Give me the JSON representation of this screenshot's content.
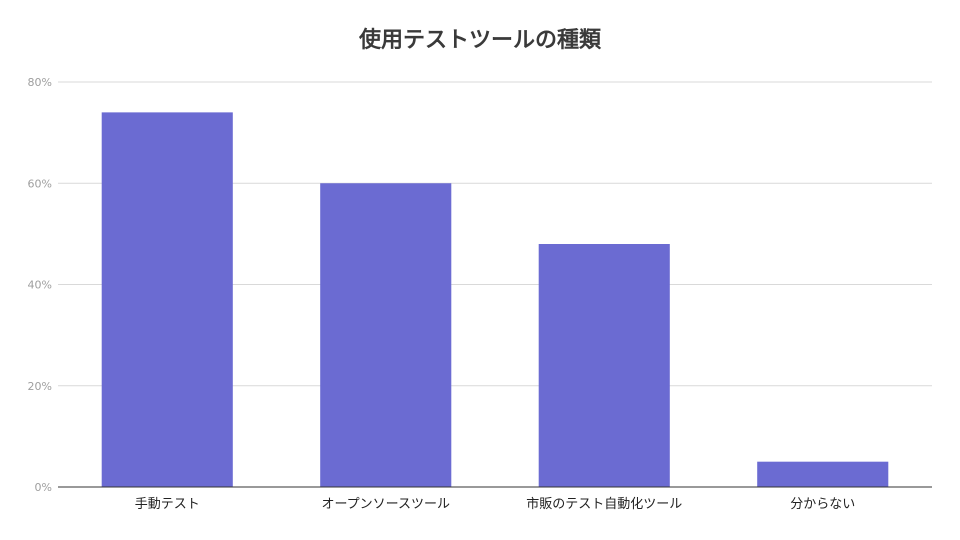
{
  "chart_data": {
    "type": "bar",
    "title": "使用テストツールの種類",
    "xlabel": "",
    "ylabel": "",
    "categories": [
      "手動テスト",
      "オープンソースツール",
      "市販のテスト自動化ツール",
      "分からない"
    ],
    "values": [
      74,
      60,
      48,
      5
    ],
    "value_unit": "%",
    "ylim": [
      0,
      80
    ],
    "yticks": [
      0,
      20,
      40,
      60,
      80
    ],
    "ytick_labels": [
      "0%",
      "20%",
      "40%",
      "60%",
      "80%"
    ],
    "grid": true,
    "bar_color": "#6b6bd2"
  }
}
